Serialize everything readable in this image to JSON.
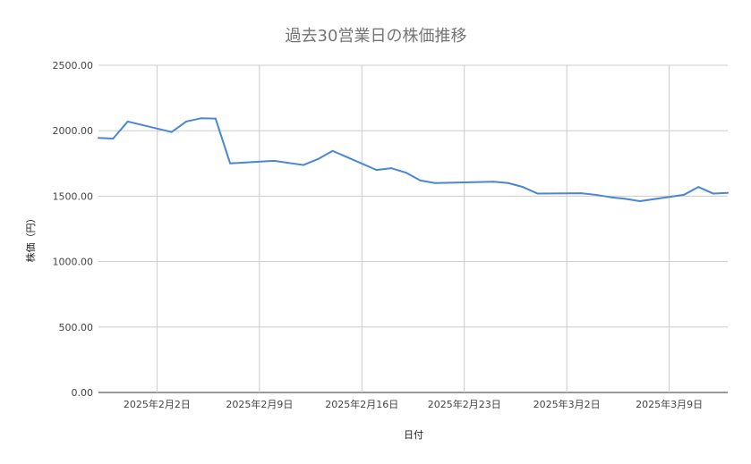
{
  "chart_data": {
    "type": "line",
    "title": "過去30営業日の株価推移",
    "xlabel": "日付",
    "ylabel": "株価（円）",
    "ylim": [
      0,
      2500
    ],
    "xlim": [
      "2025-01-29",
      "2025-03-13"
    ],
    "y_ticks": [
      "0.00",
      "500.00",
      "1000.00",
      "1500.00",
      "2000.00",
      "2500.00"
    ],
    "x_ticks": [
      {
        "date": "2025-02-02",
        "label": "2025年2月2日"
      },
      {
        "date": "2025-02-09",
        "label": "2025年2月9日"
      },
      {
        "date": "2025-02-16",
        "label": "2025年2月16日"
      },
      {
        "date": "2025-02-23",
        "label": "2025年2月23日"
      },
      {
        "date": "2025-03-02",
        "label": "2025年3月2日"
      },
      {
        "date": "2025-03-09",
        "label": "2025年3月9日"
      }
    ],
    "grid": true,
    "color": "#4a86d8",
    "x": [
      "2025-01-29",
      "2025-01-30",
      "2025-01-31",
      "2025-02-03",
      "2025-02-04",
      "2025-02-05",
      "2025-02-06",
      "2025-02-07",
      "2025-02-10",
      "2025-02-12",
      "2025-02-13",
      "2025-02-14",
      "2025-02-17",
      "2025-02-18",
      "2025-02-19",
      "2025-02-20",
      "2025-02-21",
      "2025-02-25",
      "2025-02-26",
      "2025-02-27",
      "2025-02-28",
      "2025-03-03",
      "2025-03-04",
      "2025-03-05",
      "2025-03-06",
      "2025-03-07",
      "2025-03-10",
      "2025-03-11",
      "2025-03-12",
      "2025-03-13"
    ],
    "values": [
      1945,
      1940,
      2070,
      1990,
      2070,
      2095,
      2093,
      1750,
      1770,
      1738,
      1783,
      1846,
      1700,
      1714,
      1680,
      1620,
      1600,
      1610,
      1600,
      1570,
      1520,
      1522,
      1510,
      1492,
      1480,
      1462,
      1510,
      1570,
      1520,
      1525
    ]
  }
}
